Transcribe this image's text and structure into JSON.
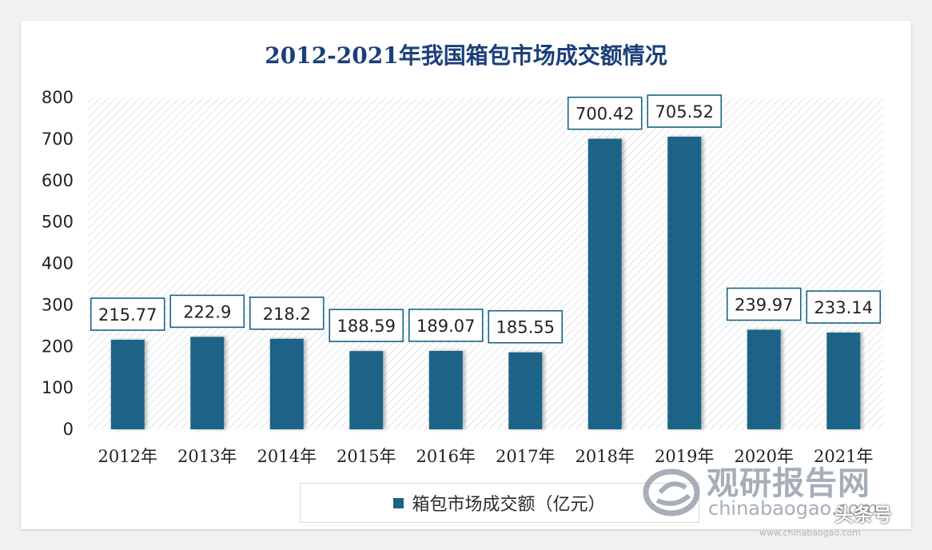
{
  "chart_data": {
    "type": "bar",
    "title": "2012-2021年我国箱包市场成交额情况",
    "categories": [
      "2012年",
      "2013年",
      "2014年",
      "2015年",
      "2016年",
      "2017年",
      "2018年",
      "2019年",
      "2020年",
      "2021年"
    ],
    "data_labels": [
      "215.77",
      "222.9",
      "218.2",
      "188.59",
      "189.07",
      "185.55",
      "700.42",
      "705.52",
      "239.97",
      "233.14"
    ],
    "series": [
      {
        "name": "箱包市场成交额（亿元）",
        "values": [
          215.77,
          222.9,
          218.2,
          188.59,
          189.07,
          185.55,
          700.42,
          705.52,
          239.97,
          233.14
        ]
      }
    ],
    "ylim": [
      0,
      800
    ],
    "yticks": [
      "0",
      "100",
      "200",
      "300",
      "400",
      "500",
      "600",
      "700",
      "800"
    ],
    "xlabel": "",
    "ylabel": "",
    "grid": false,
    "legend_position": "bottom",
    "colors": {
      "bar": "#1a6387",
      "title": "#1b3f7a",
      "hatch": "#d2d7de"
    }
  },
  "watermark": {
    "title": "观研报告网",
    "site": "chinabaogao.com",
    "badge": "头条号",
    "subsite": "www.chinabaogao.com"
  }
}
